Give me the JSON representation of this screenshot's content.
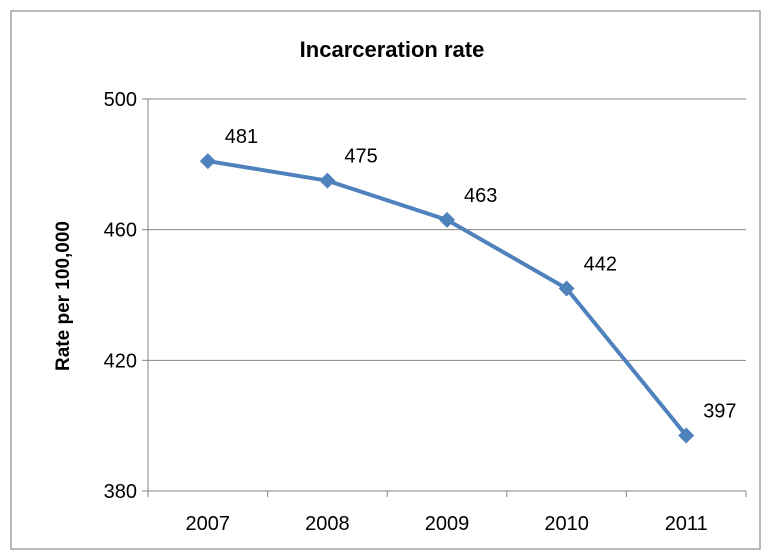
{
  "chart_data": {
    "type": "line",
    "title": "Incarceration rate",
    "xlabel": "",
    "ylabel": "Rate per 100,000",
    "categories": [
      "2007",
      "2008",
      "2009",
      "2010",
      "2011"
    ],
    "series": [
      {
        "values": [
          481,
          475,
          463,
          442,
          397
        ],
        "color": "#4F81BD",
        "marker": "diamond"
      }
    ],
    "data_labels": [
      "481",
      "475",
      "463",
      "442",
      "397"
    ],
    "ylim": [
      380,
      500
    ],
    "yticks": [
      380,
      420,
      460,
      500
    ],
    "ytick_labels": [
      "380",
      "420",
      "460",
      "500"
    ],
    "grid": "horizontal",
    "legend": "none"
  }
}
